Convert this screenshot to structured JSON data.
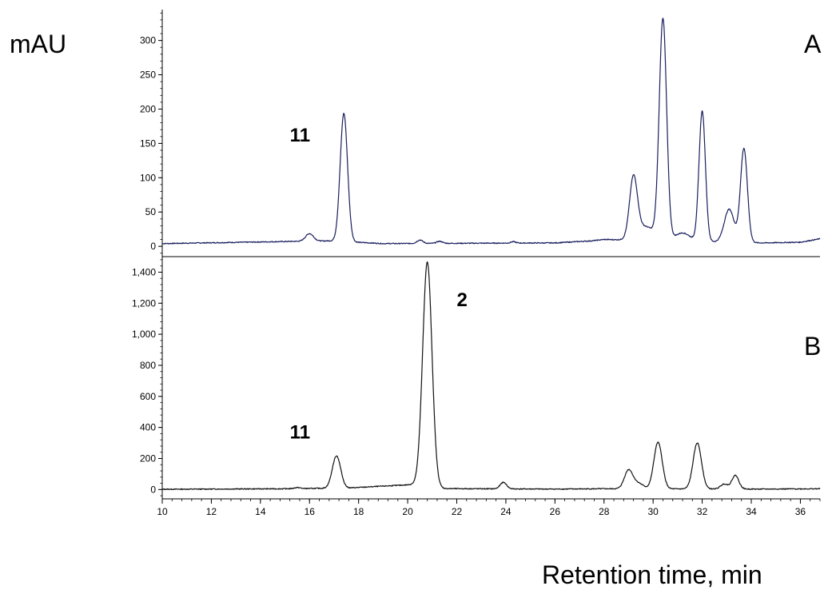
{
  "chart_data": [
    {
      "type": "line",
      "panel_label": "A",
      "ylabel": "mAU",
      "xlim": [
        10,
        36.8
      ],
      "ylim": [
        -15,
        345
      ],
      "y_ticks": [
        0,
        50,
        100,
        150,
        200,
        250,
        300
      ],
      "y_tick_labels": [
        "0",
        "50",
        "100",
        "150",
        "200",
        "250",
        "300"
      ],
      "line_color": "#1a1f5e",
      "baseline": [
        [
          10,
          4
        ],
        [
          15,
          7
        ],
        [
          16.8,
          8
        ],
        [
          19,
          4
        ],
        [
          26,
          5
        ],
        [
          27.5,
          8
        ],
        [
          28,
          10
        ],
        [
          34.5,
          5
        ],
        [
          36,
          6
        ],
        [
          36.8,
          11
        ]
      ],
      "peaks": [
        {
          "x": 16.0,
          "height": 11,
          "width": 0.16,
          "label": ""
        },
        {
          "x": 17.4,
          "height": 187,
          "width": 0.15,
          "label": "11"
        },
        {
          "x": 20.5,
          "height": 5,
          "width": 0.12,
          "label": ""
        },
        {
          "x": 21.3,
          "height": 3,
          "width": 0.12,
          "label": ""
        },
        {
          "x": 24.3,
          "height": 2,
          "width": 0.1,
          "label": ""
        },
        {
          "x": 29.2,
          "height": 88,
          "width": 0.16,
          "label": ""
        },
        {
          "x": 29.7,
          "height": 20,
          "width": 0.35,
          "label": ""
        },
        {
          "x": 30.4,
          "height": 322,
          "width": 0.15,
          "label": ""
        },
        {
          "x": 31.2,
          "height": 12,
          "width": 0.3,
          "label": ""
        },
        {
          "x": 32.0,
          "height": 190,
          "width": 0.13,
          "label": ""
        },
        {
          "x": 33.1,
          "height": 48,
          "width": 0.2,
          "label": ""
        },
        {
          "x": 33.7,
          "height": 137,
          "width": 0.14,
          "label": ""
        }
      ],
      "annotations": [
        {
          "text": "11",
          "x": 15.2,
          "y": 153
        }
      ]
    },
    {
      "type": "line",
      "panel_label": "B",
      "xlabel": "Retention time, min",
      "xlim": [
        10,
        36.8
      ],
      "ylim": [
        -60,
        1500
      ],
      "x_ticks": [
        10,
        12,
        14,
        16,
        18,
        20,
        22,
        24,
        26,
        28,
        30,
        32,
        34,
        36
      ],
      "x_tick_labels": [
        "10",
        "12",
        "14",
        "16",
        "18",
        "20",
        "22",
        "24",
        "26",
        "28",
        "30",
        "32",
        "34",
        "36"
      ],
      "y_ticks": [
        0,
        200,
        400,
        600,
        800,
        1000,
        1200,
        1400
      ],
      "y_tick_labels": [
        "0",
        "200",
        "400",
        "600",
        "800",
        "1,000",
        "1,200",
        "1,400"
      ],
      "line_color": "#111111",
      "baseline": [
        [
          10,
          2
        ],
        [
          15,
          5
        ],
        [
          17.6,
          10
        ],
        [
          19,
          22
        ],
        [
          20.2,
          32
        ],
        [
          21.5,
          6
        ],
        [
          26,
          3
        ],
        [
          28,
          5
        ],
        [
          34.5,
          3
        ],
        [
          36.8,
          5
        ]
      ],
      "peaks": [
        {
          "x": 15.5,
          "height": 7,
          "width": 0.12,
          "label": ""
        },
        {
          "x": 17.1,
          "height": 208,
          "width": 0.17,
          "label": "11"
        },
        {
          "x": 20.8,
          "height": 1445,
          "width": 0.19,
          "label": "2"
        },
        {
          "x": 23.9,
          "height": 42,
          "width": 0.13,
          "label": ""
        },
        {
          "x": 29.0,
          "height": 120,
          "width": 0.17,
          "label": ""
        },
        {
          "x": 29.4,
          "height": 35,
          "width": 0.2,
          "label": ""
        },
        {
          "x": 30.2,
          "height": 300,
          "width": 0.17,
          "label": ""
        },
        {
          "x": 31.8,
          "height": 296,
          "width": 0.17,
          "label": ""
        },
        {
          "x": 32.9,
          "height": 32,
          "width": 0.15,
          "label": ""
        },
        {
          "x": 33.35,
          "height": 88,
          "width": 0.14,
          "label": ""
        }
      ],
      "annotations": [
        {
          "text": "11",
          "x": 15.2,
          "y": 330
        },
        {
          "text": "2",
          "x": 22.0,
          "y": 1180
        }
      ]
    }
  ]
}
